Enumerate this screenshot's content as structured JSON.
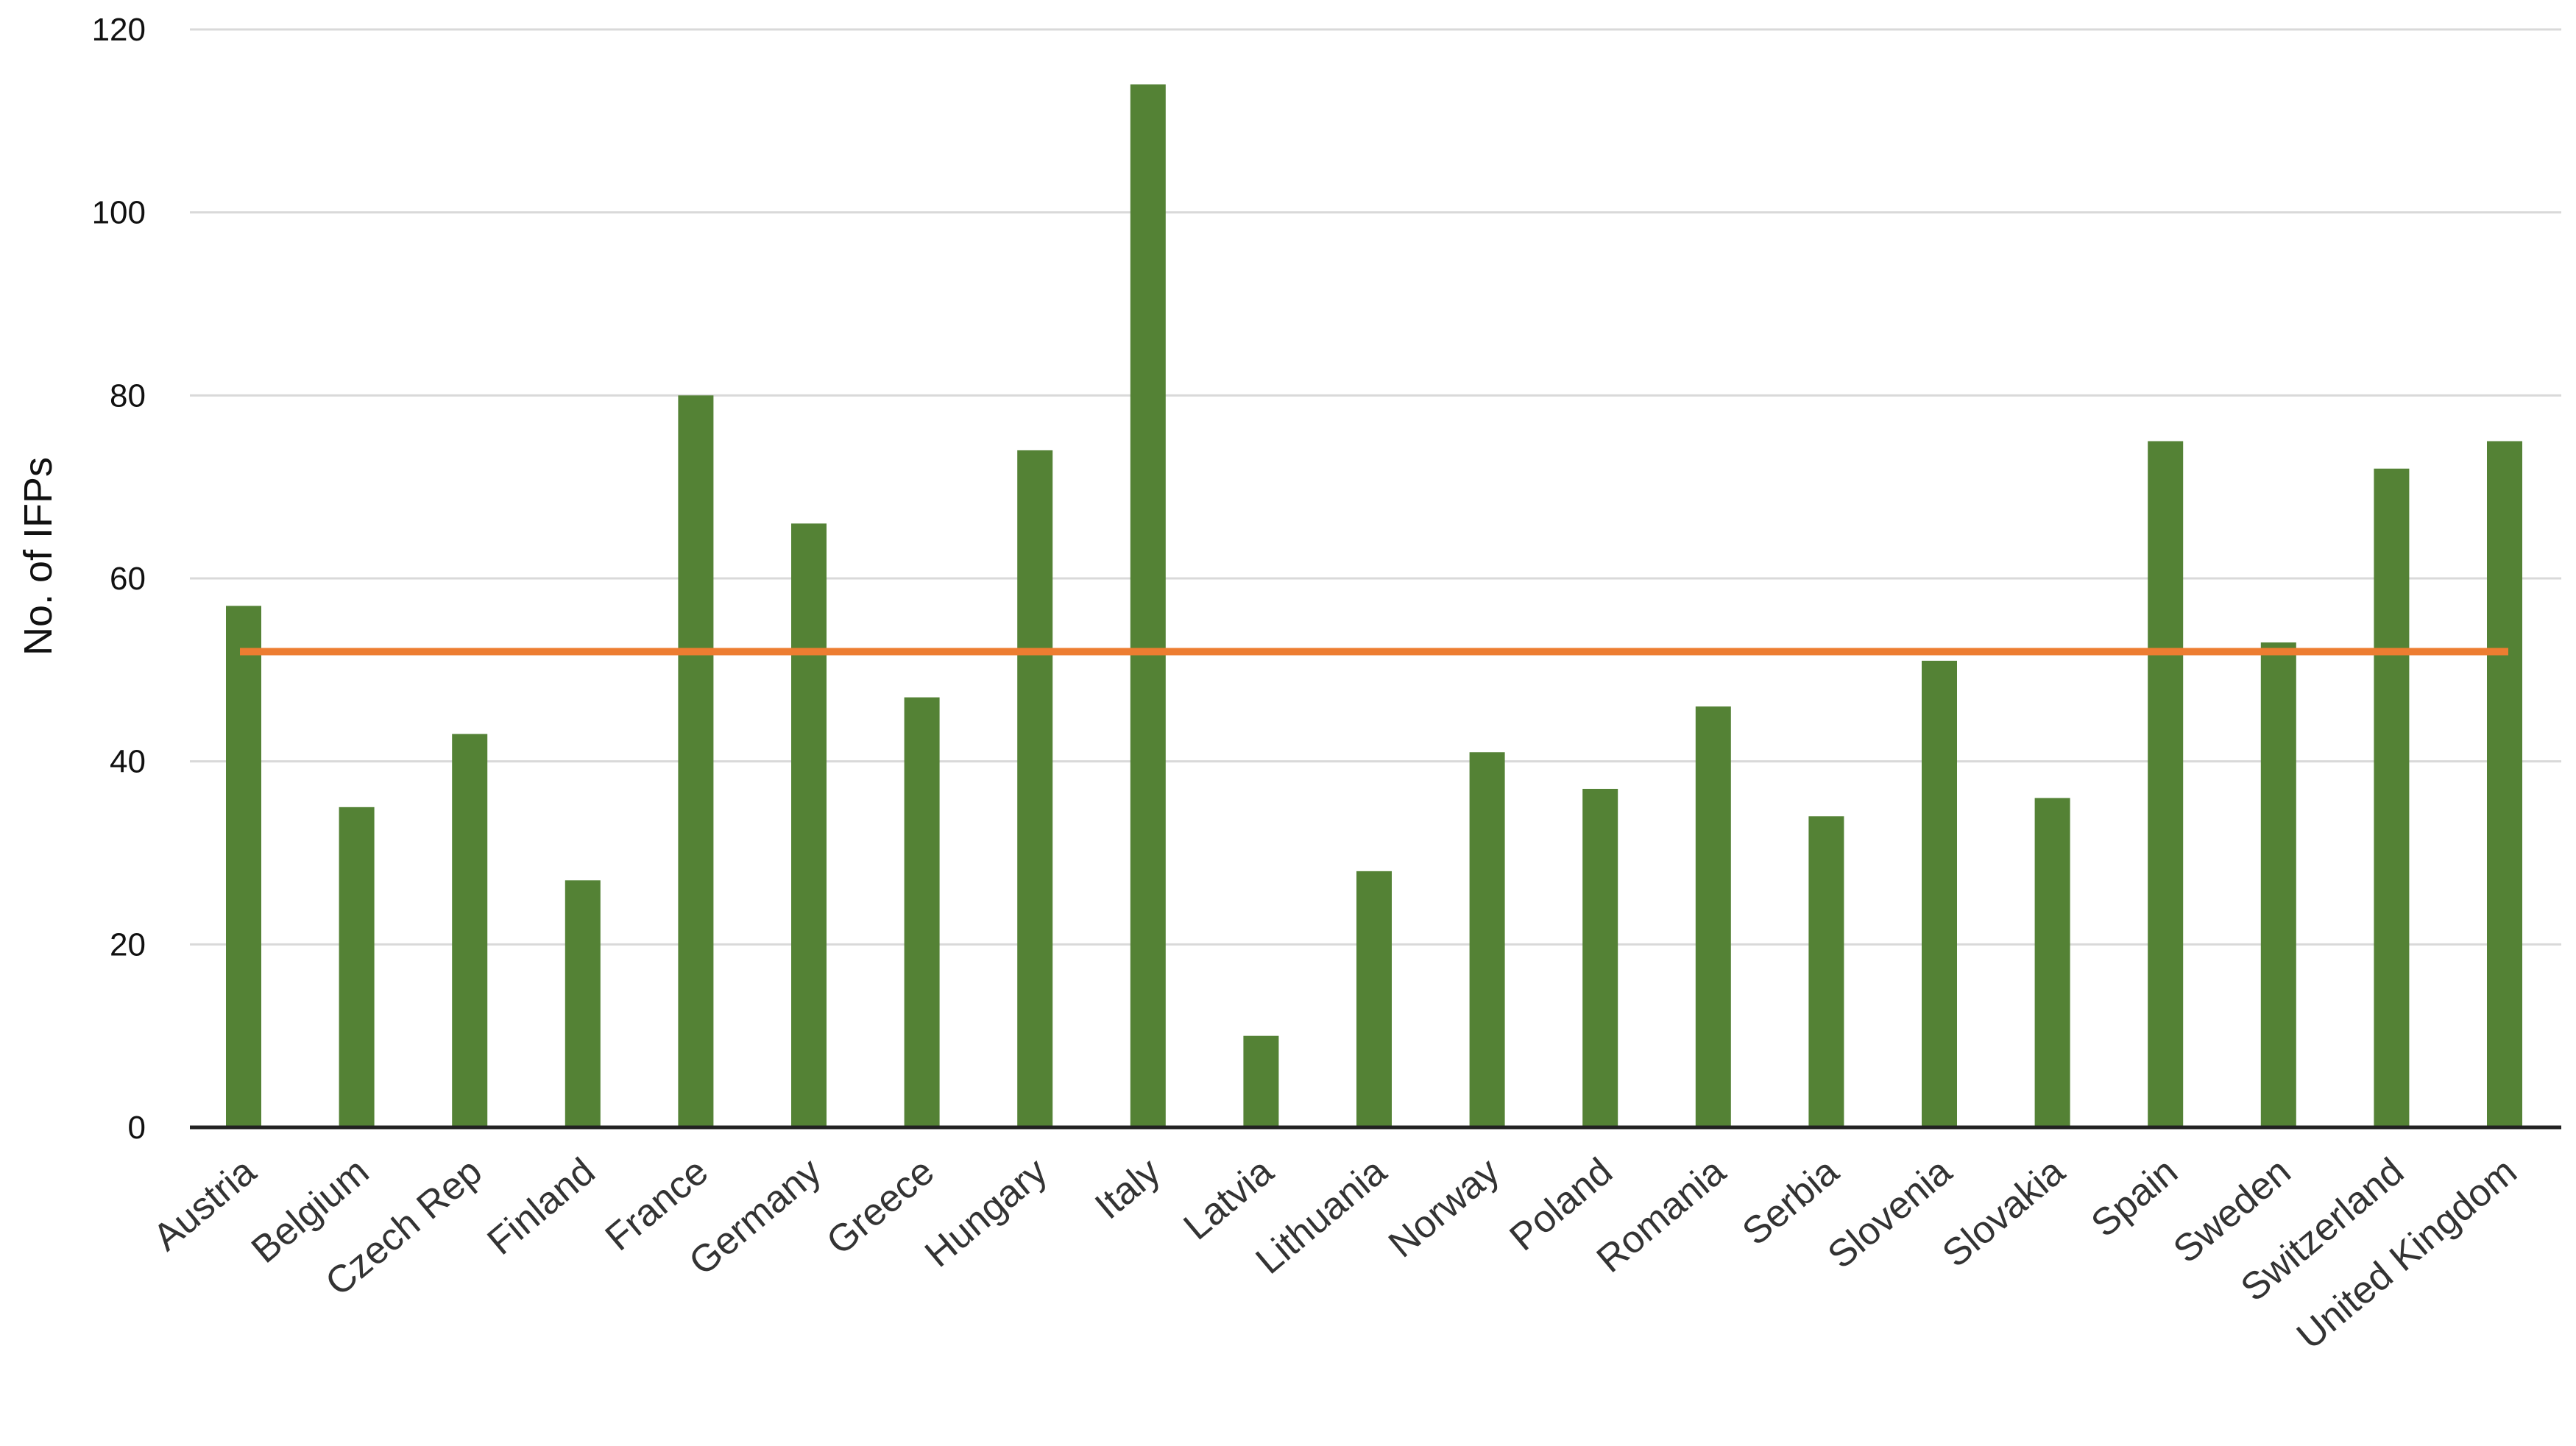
{
  "chart_data": {
    "type": "bar",
    "categories": [
      "Austria",
      "Belgium",
      "Czech Rep",
      "Finland",
      "France",
      "Germany",
      "Greece",
      "Hungary",
      "Italy",
      "Latvia",
      "Lithuania",
      "Norway",
      "Poland",
      "Romania",
      "Serbia",
      "Slovenia",
      "Slovakia",
      "Spain",
      "Sweden",
      "Switzerland",
      "United Kingdom"
    ],
    "values": [
      57,
      35,
      43,
      27,
      80,
      66,
      47,
      74,
      114,
      10,
      28,
      41,
      37,
      46,
      34,
      51,
      36,
      75,
      53,
      72,
      75
    ],
    "average_line": 52,
    "ylabel": "No. of IFPs",
    "xlabel": "",
    "title": "",
    "ylim": [
      0,
      120
    ],
    "yticks": [
      "0",
      "20",
      "40",
      "60",
      "80",
      "100",
      "120"
    ],
    "grid": true,
    "legend": "none",
    "bar_color": "#548235",
    "line_color": "#ed7d31"
  }
}
